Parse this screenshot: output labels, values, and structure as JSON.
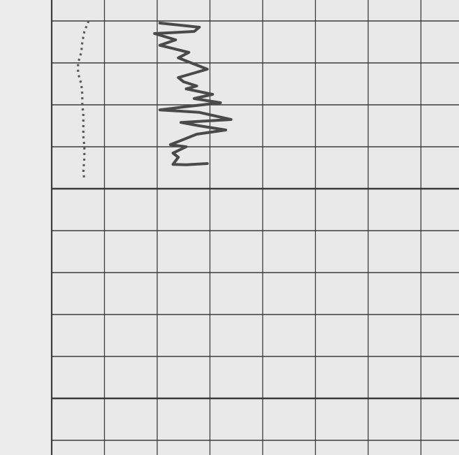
{
  "chart_data": {
    "type": "line",
    "title": "",
    "xlabel": "",
    "ylabel": "",
    "grid": true,
    "legend": "none",
    "xlim": [
      0,
      8
    ],
    "ylim": [
      0,
      10.6
    ],
    "y_axis_inverted": true,
    "series": [
      {
        "style": "dotted",
        "color": "#5a5a5a",
        "points": [
          [
            0.7,
            0.0
          ],
          [
            0.62,
            0.25
          ],
          [
            0.58,
            0.5
          ],
          [
            0.56,
            0.75
          ],
          [
            0.5,
            1.0
          ],
          [
            0.5,
            1.25
          ],
          [
            0.56,
            1.5
          ],
          [
            0.58,
            1.75
          ],
          [
            0.58,
            2.0
          ],
          [
            0.6,
            2.25
          ],
          [
            0.6,
            2.5
          ],
          [
            0.6,
            2.75
          ],
          [
            0.62,
            3.0
          ],
          [
            0.62,
            3.25
          ],
          [
            0.6,
            3.6
          ],
          [
            0.62,
            3.8
          ]
        ]
      },
      {
        "style": "solid",
        "color": "#4a4a4a",
        "points": [
          [
            2.05,
            0.05
          ],
          [
            2.8,
            0.15
          ],
          [
            2.7,
            0.25
          ],
          [
            1.95,
            0.3
          ],
          [
            2.35,
            0.45
          ],
          [
            2.05,
            0.58
          ],
          [
            2.6,
            0.75
          ],
          [
            2.4,
            0.88
          ],
          [
            2.95,
            1.15
          ],
          [
            2.4,
            1.35
          ],
          [
            2.5,
            1.45
          ],
          [
            2.75,
            1.55
          ],
          [
            2.55,
            1.62
          ],
          [
            3.05,
            1.75
          ],
          [
            2.7,
            1.85
          ],
          [
            3.2,
            1.95
          ],
          [
            2.5,
            2.05
          ],
          [
            2.05,
            2.12
          ],
          [
            2.8,
            2.18
          ],
          [
            3.4,
            2.35
          ],
          [
            2.45,
            2.42
          ],
          [
            2.8,
            2.5
          ],
          [
            3.3,
            2.6
          ],
          [
            2.75,
            2.7
          ],
          [
            2.25,
            2.95
          ],
          [
            2.55,
            3.0
          ],
          [
            2.3,
            3.15
          ],
          [
            2.4,
            3.25
          ],
          [
            2.3,
            3.42
          ],
          [
            2.55,
            3.43
          ],
          [
            2.95,
            3.4
          ]
        ]
      }
    ]
  }
}
